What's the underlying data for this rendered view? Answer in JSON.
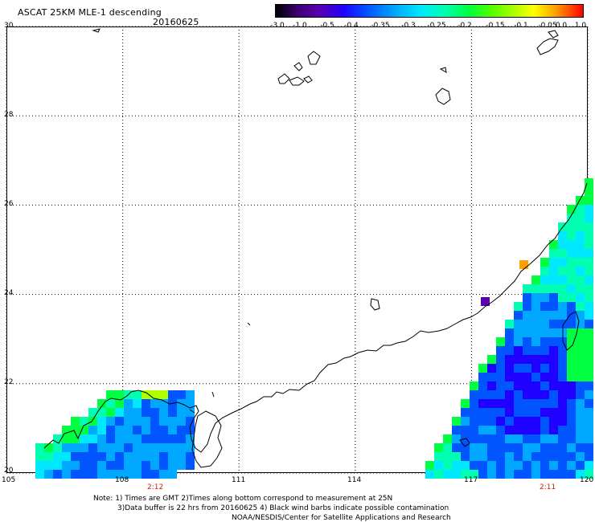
{
  "header": {
    "title": "ASCAT 25KM MLE-1 descending",
    "date": "20160625"
  },
  "colorbar": {
    "labels": [
      "-3.0",
      "-1.0",
      "-0.5",
      "-0.4",
      "-0.35",
      "-0.3",
      "-0.25",
      "-0.2",
      "-0.15",
      "-0.1",
      "-0.05",
      "0.0",
      "1.0"
    ],
    "colors": [
      "#000000",
      "#5a00b0",
      "#2000ff",
      "#0055ff",
      "#00a8ff",
      "#00e8ff",
      "#00ffb0",
      "#00ff40",
      "#b0ff00",
      "#ffff00",
      "#ffa000",
      "#ff0000"
    ]
  },
  "map": {
    "lon_labels": [
      "105",
      "108",
      "111",
      "114",
      "117",
      "120"
    ],
    "lat_labels": [
      "30",
      "28",
      "26",
      "24",
      "22",
      "20"
    ],
    "lon_range": [
      105,
      120
    ],
    "lat_range": [
      20,
      30
    ],
    "grid": "dotted",
    "orbit_times": [
      {
        "text": "2:12",
        "lon": 108.9
      },
      {
        "text": "2:11",
        "lon": 118.8
      }
    ]
  },
  "notes": [
    "Note: 1) Times are GMT 2)Times along bottom correspond to measurement at 25N",
    "3)Data buffer is 22 hrs from 20160625 4) Black wind barbs indicate possible contamination",
    "NOAA/NESDIS/Center for Satellite Applications and Research"
  ]
}
